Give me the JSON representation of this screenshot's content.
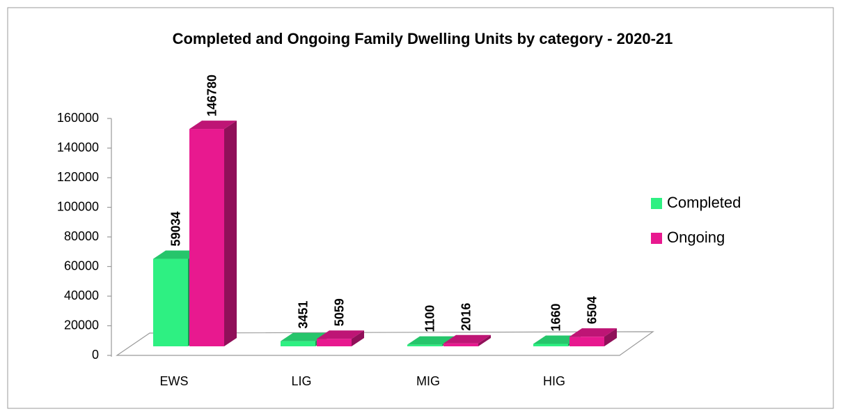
{
  "chart_data": {
    "type": "bar3d",
    "title": "Completed and Ongoing Family Dwelling Units by category - 2020-21",
    "categories": [
      "EWS",
      "LIG",
      "MIG",
      "HIG"
    ],
    "series": [
      {
        "name": "Completed",
        "color": "#2ef082",
        "values": [
          59034,
          3451,
          1100,
          1660
        ]
      },
      {
        "name": "Ongoing",
        "color": "#e8198f",
        "values": [
          146780,
          5059,
          2016,
          6504
        ]
      }
    ],
    "ylim": [
      0,
      160000
    ],
    "yticks": [
      0,
      20000,
      40000,
      60000,
      80000,
      100000,
      120000,
      140000,
      160000
    ],
    "legend": "right"
  }
}
